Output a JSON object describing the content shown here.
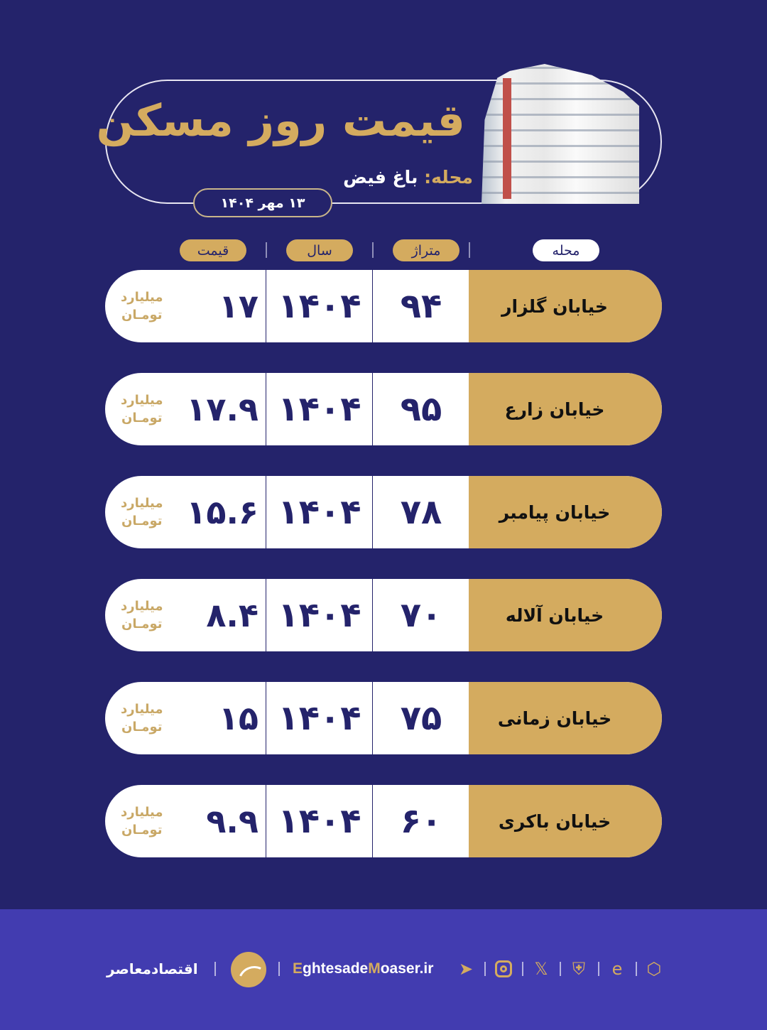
{
  "header": {
    "title": "قیمت روز مسکن",
    "neighborhood_label": "محله:",
    "neighborhood": "باغ فیض",
    "date": "۱۳ مهر ۱۴۰۴"
  },
  "columns": [
    "محله",
    "متراژ",
    "سال",
    "قیمت"
  ],
  "unit": {
    "line1": "میلیارد",
    "line2": "تومـان"
  },
  "rows": [
    {
      "name": "خیابان گلزار",
      "area": "۹۴",
      "year": "۱۴۰۴",
      "price": "۱۷"
    },
    {
      "name": "خیابان زارع",
      "area": "۹۵",
      "year": "۱۴۰۴",
      "price": "۱۷.۹"
    },
    {
      "name": "خیابان پیامبر",
      "area": "۷۸",
      "year": "۱۴۰۴",
      "price": "۱۵.۶"
    },
    {
      "name": "خیابان آلاله",
      "area": "۷۰",
      "year": "۱۴۰۴",
      "price": "۸.۴"
    },
    {
      "name": "خیابان زمانی",
      "area": "۷۵",
      "year": "۱۴۰۴",
      "price": "۱۵"
    },
    {
      "name": "خیابان باکری",
      "area": "۶۰",
      "year": "۱۴۰۴",
      "price": "۹.۹"
    }
  ],
  "footer": {
    "brand": "اقتصادمعاصر",
    "site_e": "E",
    "site_1": "ghtesade",
    "site_m": "M",
    "site_2": "oaser.ir",
    "icons": [
      "telegram-icon",
      "instagram-icon",
      "x-icon",
      "shield-check-icon",
      "e-logo-icon",
      "hexagon-icon"
    ]
  },
  "colors": {
    "background": "#24236b",
    "gold": "#d4ab5f",
    "footer": "#423cb0",
    "text": "#24236b"
  }
}
